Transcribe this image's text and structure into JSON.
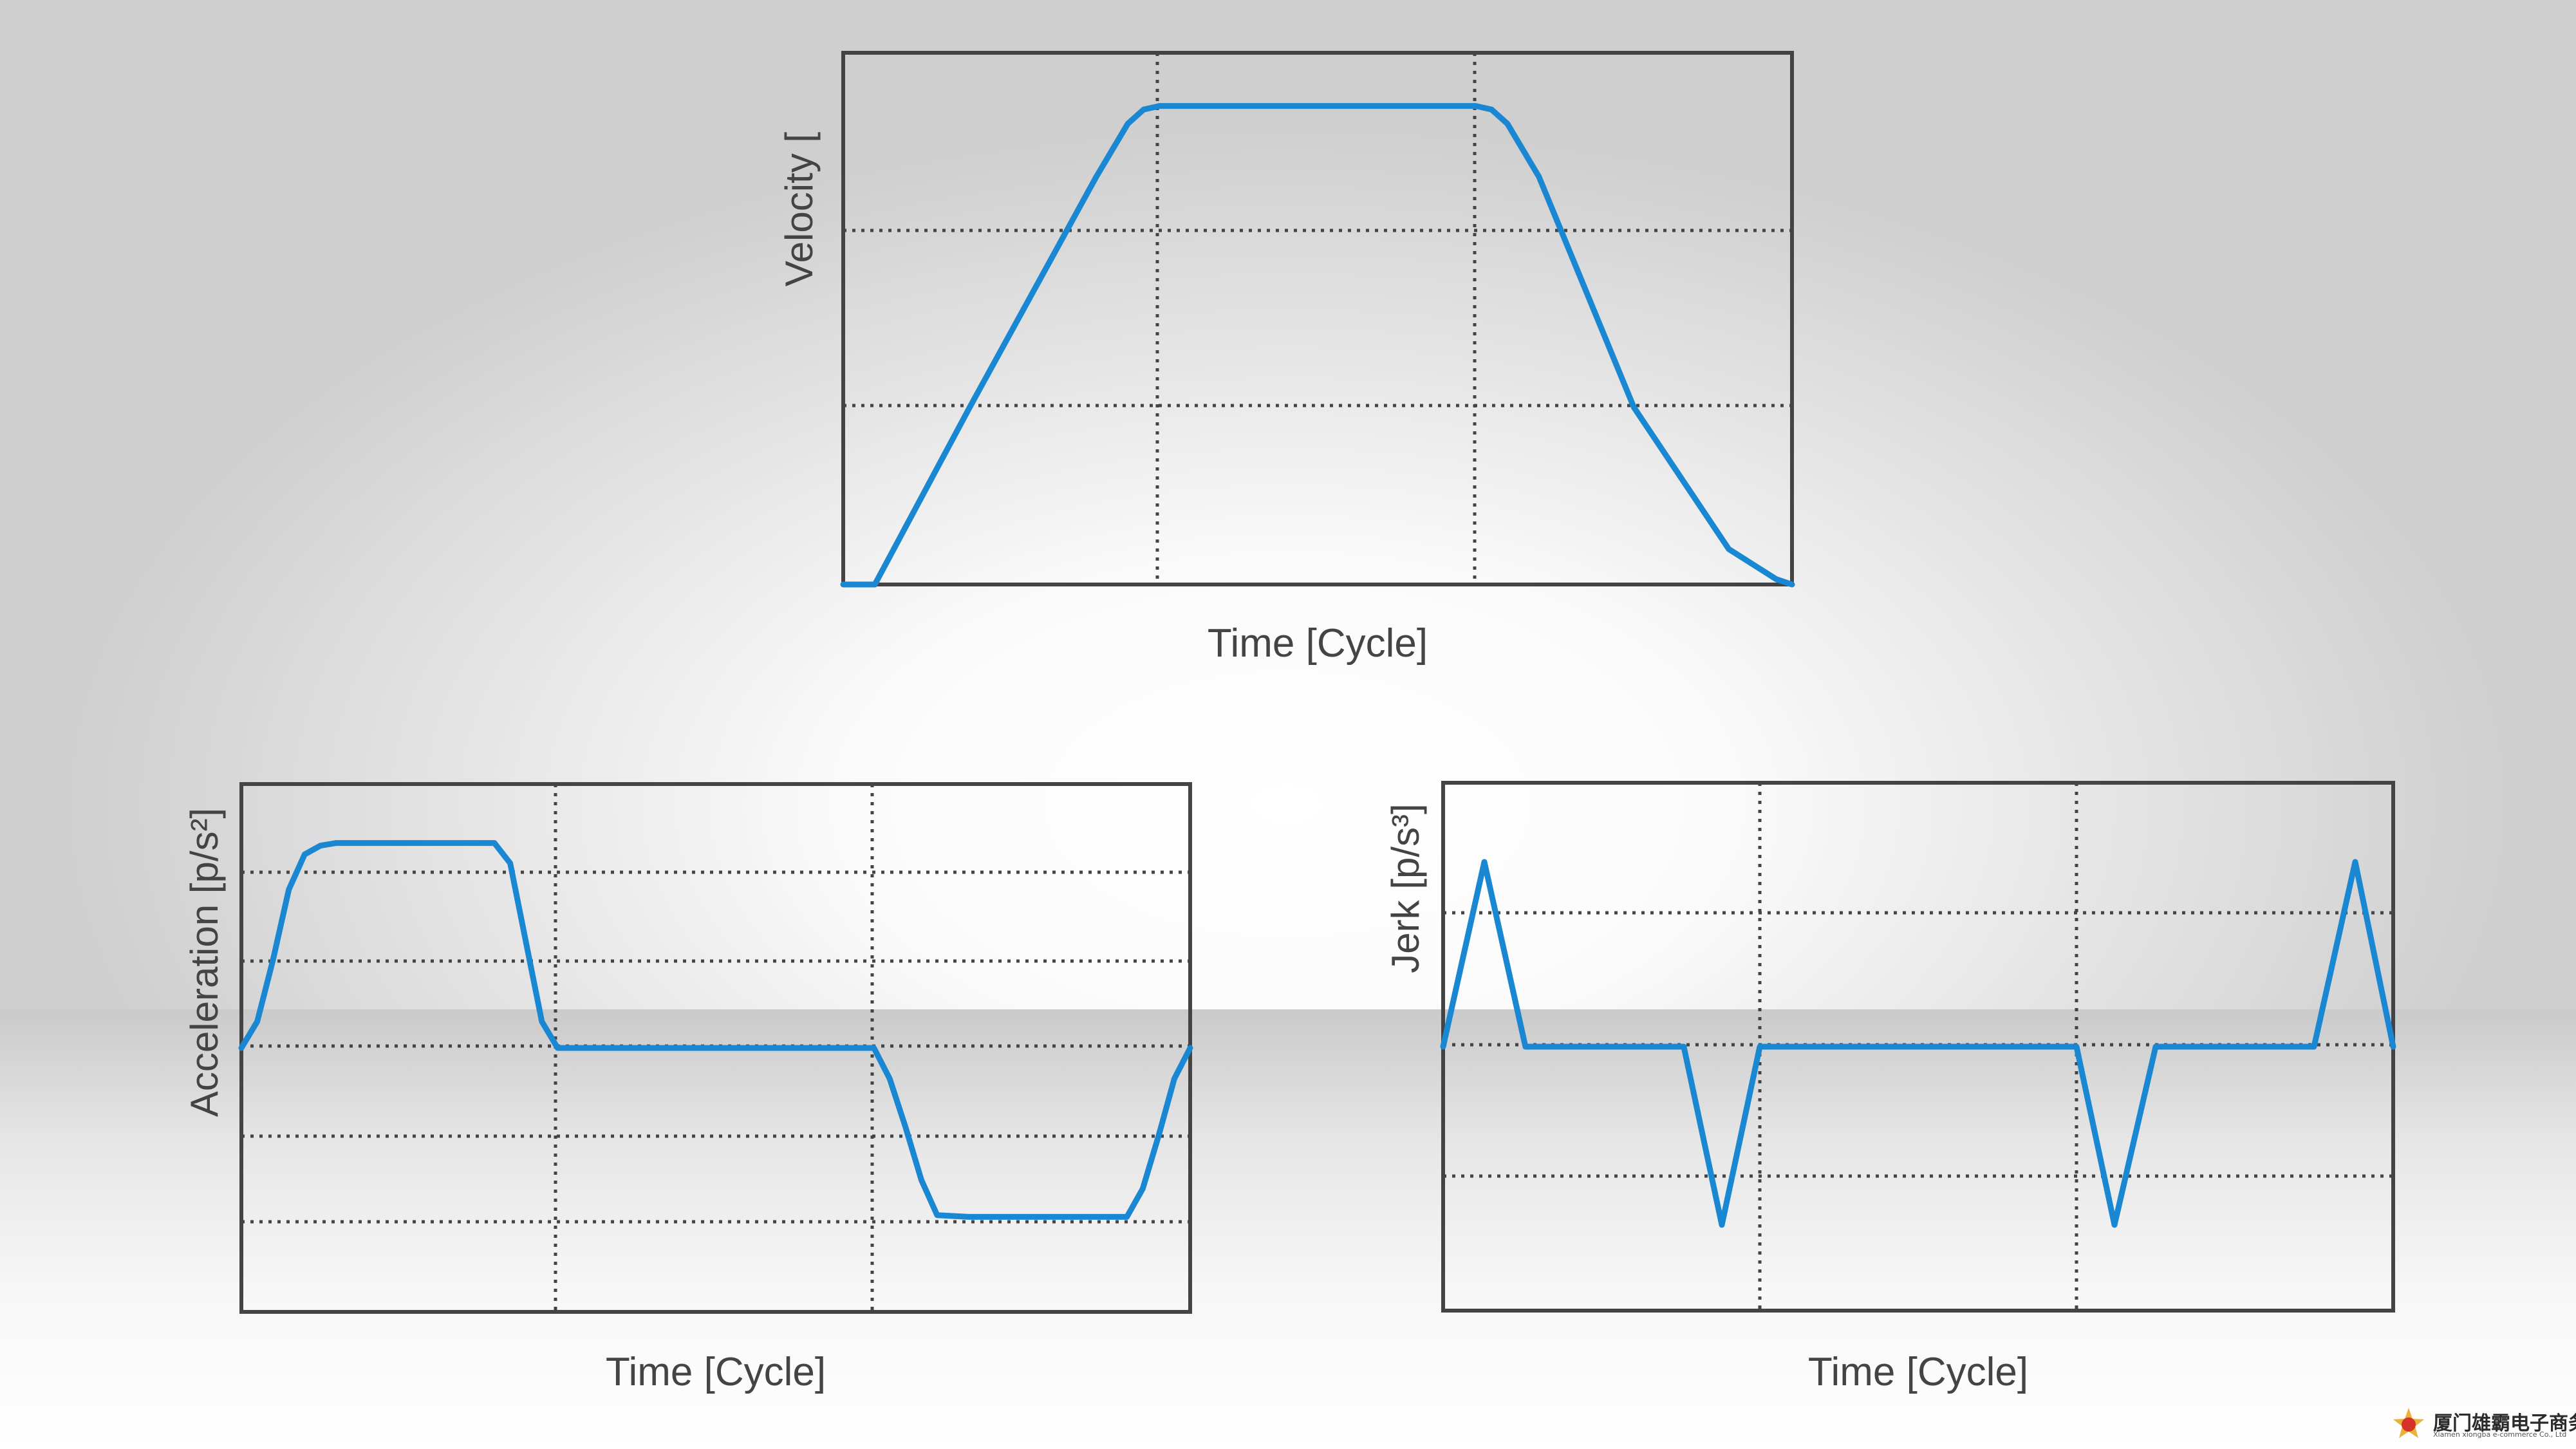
{
  "chart_data": [
    {
      "type": "line",
      "ylabel": "Velocity [",
      "xlabel": "Time [Cycle]",
      "xlim": [
        0,
        3
      ],
      "ylim": [
        0,
        3
      ],
      "grid": true,
      "series": [
        {
          "x": [
            0,
            0.1,
            0.4,
            0.8,
            0.9,
            0.95,
            1.0,
            2.0,
            2.05,
            2.1,
            2.2,
            2.5,
            2.8,
            2.95,
            3.0
          ],
          "values": [
            0,
            0,
            1.0,
            2.3,
            2.6,
            2.68,
            2.7,
            2.7,
            2.68,
            2.6,
            2.3,
            1.0,
            0.2,
            0.03,
            0
          ]
        }
      ],
      "color": "#1a87d3"
    },
    {
      "type": "line",
      "ylabel": "Acceleration [p/s²]",
      "xlabel": "Time [Cycle]",
      "xlim": [
        0,
        3
      ],
      "ylim": [
        -3,
        3
      ],
      "grid": true,
      "series": [
        {
          "x": [
            0,
            0.05,
            0.1,
            0.15,
            0.2,
            0.25,
            0.3,
            0.35,
            0.8,
            0.85,
            0.9,
            0.95,
            1.0,
            2.0,
            2.05,
            2.1,
            2.15,
            2.2,
            2.3,
            2.8,
            2.85,
            2.9,
            2.95,
            3.0
          ],
          "values": [
            0,
            0.3,
            1.0,
            1.8,
            2.2,
            2.3,
            2.33,
            2.33,
            2.33,
            2.1,
            1.2,
            0.3,
            0,
            0,
            -0.35,
            -0.9,
            -1.5,
            -1.9,
            -1.92,
            -1.92,
            -1.6,
            -1.0,
            -0.35,
            0
          ]
        }
      ],
      "color": "#1a87d3"
    },
    {
      "type": "line",
      "ylabel": "Jerk [p/s³]",
      "xlabel": "Time [Cycle]",
      "xlim": [
        0,
        3
      ],
      "ylim": [
        -2,
        2
      ],
      "grid": true,
      "series": [
        {
          "x": [
            0,
            0.13,
            0.26,
            0.76,
            0.88,
            1.0,
            2.0,
            2.12,
            2.25,
            2.75,
            2.88,
            3.0
          ],
          "values": [
            0,
            1.4,
            0,
            0,
            -1.35,
            0,
            0,
            -1.35,
            0,
            0,
            1.4,
            0
          ]
        }
      ],
      "color": "#1a87d3"
    }
  ],
  "watermark": {
    "main": "厦门雄霸电子商务",
    "sub": "Xiamen xiongba e-commerce Co., Ltd"
  }
}
